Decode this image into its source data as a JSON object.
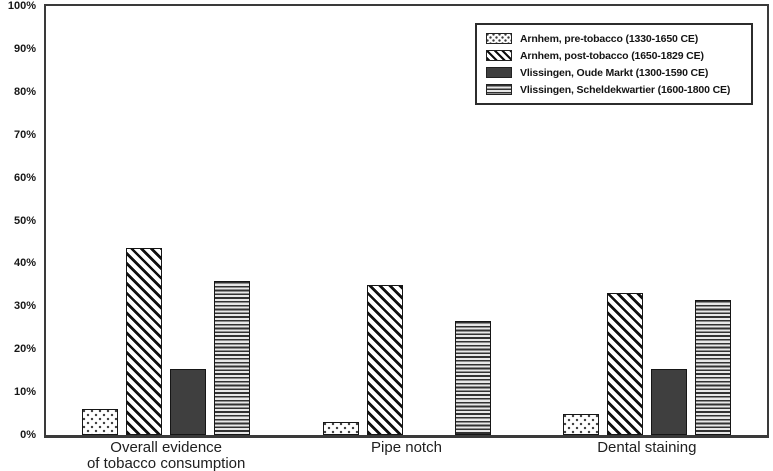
{
  "colors": {
    "background": "#ffffff",
    "axis": "#3a3a3a",
    "pattern_ink": "#101010",
    "solid_bar_fill": "#3f3f3f",
    "text": "#1a1a1a"
  },
  "chart_data": {
    "type": "bar",
    "title": "",
    "xlabel": "",
    "ylabel": "",
    "ylim": [
      0,
      100
    ],
    "ytick_step": 10,
    "yticks": [
      "0%",
      "10%",
      "20%",
      "30%",
      "40%",
      "50%",
      "60%",
      "70%",
      "80%",
      "90%",
      "100%"
    ],
    "grid": false,
    "legend_position": "top-right",
    "categories": [
      "Overall evidence\nof tobacco consumption",
      "Pipe notch",
      "Dental staining"
    ],
    "series": [
      {
        "name": "Arnhem, pre-tobacco (1330-1650 CE)",
        "pattern": "dots",
        "values": [
          6,
          3,
          5
        ]
      },
      {
        "name": "Arnhem, post-tobacco (1650-1829 CE)",
        "pattern": "diagonal-stripes",
        "values": [
          43.5,
          35,
          33
        ]
      },
      {
        "name": "Vlissingen, Oude Markt (1300-1590 CE)",
        "pattern": "solid-dark",
        "values": [
          15.5,
          0,
          15.5
        ]
      },
      {
        "name": "Vlissingen, Scheldekwartier (1600-1800 CE)",
        "pattern": "horizontal-stripes",
        "values": [
          36,
          26.5,
          31.5
        ]
      }
    ]
  }
}
